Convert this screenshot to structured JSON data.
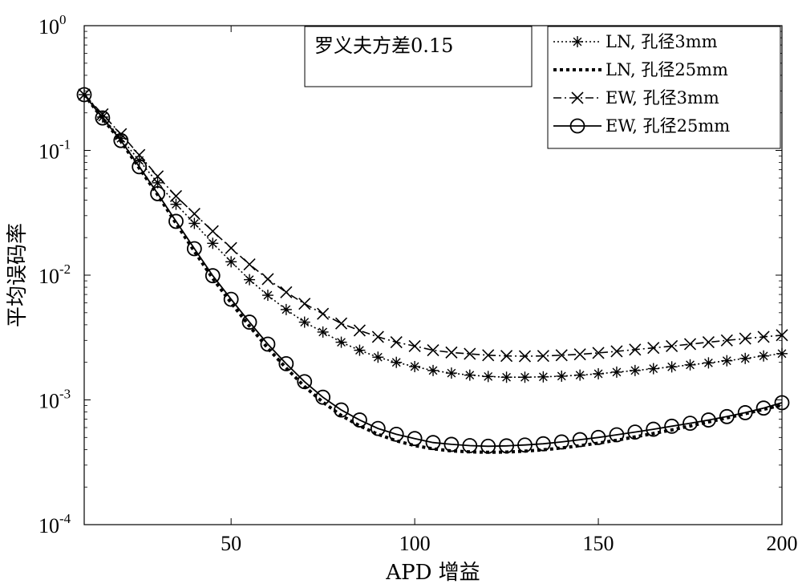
{
  "chart_data": {
    "type": "line",
    "xlabel": "APD 增益",
    "ylabel": "平均误码率",
    "xlim": [
      10,
      200
    ],
    "ylim": [
      0.0001,
      1
    ],
    "y_scale": "log",
    "x_ticks": [
      50,
      100,
      150,
      200
    ],
    "y_ticks": [
      {
        "value": 1,
        "base": "10",
        "exp": "0"
      },
      {
        "value": 0.1,
        "base": "10",
        "exp": "-1"
      },
      {
        "value": 0.01,
        "base": "10",
        "exp": "-2"
      },
      {
        "value": 0.001,
        "base": "10",
        "exp": "-3"
      },
      {
        "value": 0.0001,
        "base": "10",
        "exp": "-4"
      }
    ],
    "grid": false,
    "legend_position": "top-right",
    "annotation": "罗义夫方差0.15",
    "x": [
      10,
      15,
      20,
      25,
      30,
      35,
      40,
      45,
      50,
      55,
      60,
      65,
      70,
      75,
      80,
      85,
      90,
      95,
      100,
      105,
      110,
      115,
      120,
      125,
      130,
      135,
      140,
      145,
      150,
      155,
      160,
      165,
      170,
      175,
      180,
      185,
      190,
      195,
      200
    ],
    "series": [
      {
        "name": "LN, 孔径3mm",
        "line_style": "dotted",
        "marker": "asterisk",
        "values": [
          0.28,
          0.185,
          0.125,
          0.083,
          0.055,
          0.037,
          0.026,
          0.018,
          0.0128,
          0.0092,
          0.0069,
          0.0053,
          0.0042,
          0.0035,
          0.0029,
          0.0025,
          0.0022,
          0.002,
          0.00185,
          0.00172,
          0.00164,
          0.00158,
          0.00154,
          0.00152,
          0.00152,
          0.00153,
          0.00155,
          0.00158,
          0.00162,
          0.00167,
          0.00172,
          0.00178,
          0.00184,
          0.00191,
          0.00198,
          0.00206,
          0.00215,
          0.00225,
          0.00235
        ]
      },
      {
        "name": "LN, 孔径25mm",
        "line_style": "heavy-dotted",
        "marker": "none",
        "values": [
          0.28,
          0.18,
          0.118,
          0.072,
          0.044,
          0.026,
          0.0155,
          0.0094,
          0.006,
          0.0039,
          0.0026,
          0.0018,
          0.00128,
          0.00096,
          0.00075,
          0.00062,
          0.00053,
          0.00047,
          0.00043,
          0.000405,
          0.00039,
          0.000383,
          0.00038,
          0.000382,
          0.000388,
          0.000398,
          0.000412,
          0.00043,
          0.00045,
          0.000475,
          0.000505,
          0.000538,
          0.000575,
          0.000618,
          0.000665,
          0.000718,
          0.000775,
          0.00084,
          0.00091
        ]
      },
      {
        "name": "EW, 孔径3mm",
        "line_style": "dash-dot",
        "marker": "x",
        "values": [
          0.28,
          0.195,
          0.135,
          0.092,
          0.062,
          0.043,
          0.031,
          0.0225,
          0.0165,
          0.0122,
          0.0093,
          0.0073,
          0.0059,
          0.0049,
          0.0041,
          0.0036,
          0.0032,
          0.0029,
          0.0027,
          0.0025,
          0.0024,
          0.00234,
          0.00228,
          0.00225,
          0.00224,
          0.00225,
          0.00228,
          0.00232,
          0.00238,
          0.00245,
          0.00253,
          0.00261,
          0.0027,
          0.0028,
          0.0029,
          0.003,
          0.0031,
          0.0032,
          0.0033
        ]
      },
      {
        "name": "EW, 孔径25mm",
        "line_style": "solid",
        "marker": "circle",
        "values": [
          0.28,
          0.182,
          0.12,
          0.074,
          0.045,
          0.027,
          0.0163,
          0.0099,
          0.0064,
          0.0042,
          0.0028,
          0.00195,
          0.0014,
          0.00105,
          0.00083,
          0.00069,
          0.00059,
          0.00053,
          0.00049,
          0.000455,
          0.00044,
          0.00043,
          0.000425,
          0.000428,
          0.000435,
          0.000445,
          0.00046,
          0.00048,
          0.0005,
          0.000525,
          0.000552,
          0.000582,
          0.000615,
          0.00065,
          0.00069,
          0.000735,
          0.00079,
          0.00086,
          0.00095
        ]
      }
    ]
  }
}
